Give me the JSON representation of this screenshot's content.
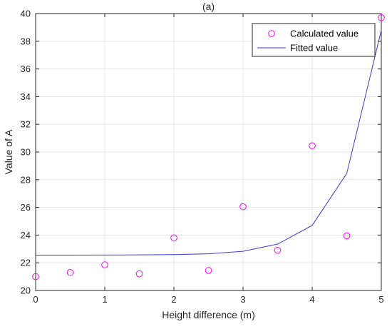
{
  "chart_data": {
    "type": "scatter",
    "title": "(a)",
    "xlabel": "Height difference (m)",
    "ylabel": "Value of A",
    "xlim": [
      0,
      5
    ],
    "ylim": [
      20,
      40
    ],
    "xticks": [
      "0",
      "1",
      "2",
      "3",
      "4",
      "5"
    ],
    "yticks": [
      "20",
      "22",
      "24",
      "26",
      "28",
      "30",
      "32",
      "34",
      "36",
      "38",
      "40"
    ],
    "grid": true,
    "legend_position": "top-right",
    "series": [
      {
        "name": "Calculated value",
        "style": "markers",
        "color": "#ff00ff",
        "x": [
          0,
          0.5,
          1,
          1.5,
          2,
          2.5,
          3,
          3.5,
          4,
          4.5,
          5
        ],
        "y": [
          21.0,
          21.3,
          21.85,
          21.2,
          23.8,
          21.45,
          26.05,
          22.9,
          30.45,
          23.95,
          39.7
        ]
      },
      {
        "name": "Fitted value",
        "style": "line",
        "color": "#3b3bd6",
        "x": [
          0,
          0.5,
          1,
          1.5,
          2,
          2.5,
          3,
          3.5,
          4,
          4.5,
          5
        ],
        "y": [
          22.55,
          22.55,
          22.56,
          22.57,
          22.59,
          22.65,
          22.83,
          23.35,
          24.7,
          28.45,
          38.8
        ]
      }
    ]
  }
}
